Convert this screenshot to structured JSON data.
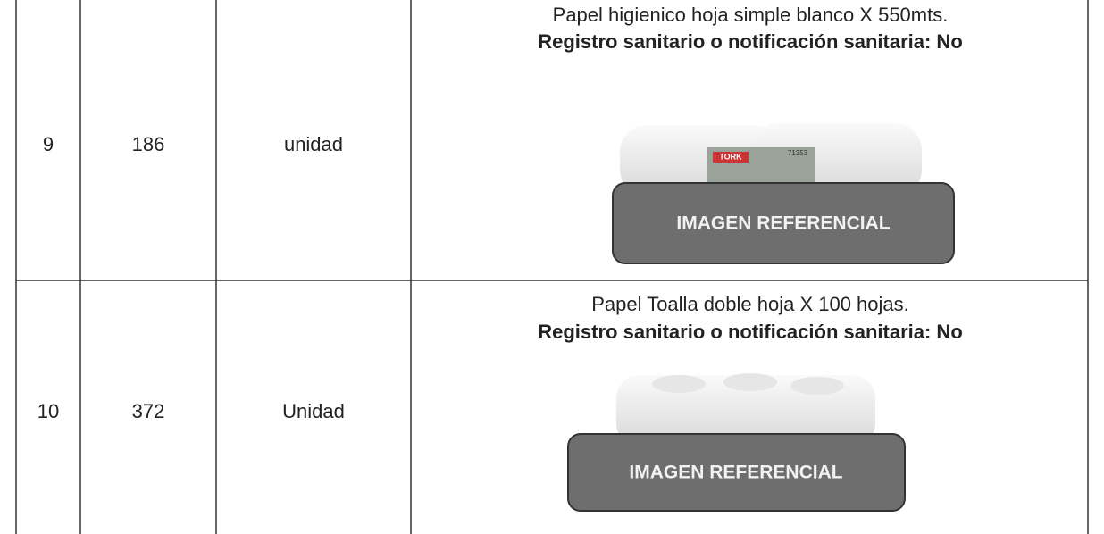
{
  "table": {
    "rows": [
      {
        "item": "9",
        "quantity": "186",
        "unit": "unidad",
        "description": "Papel higienico hoja simple blanco X 550mts.",
        "registry": "Registro sanitario o notificación sanitaria: No",
        "image_brand": "TORK",
        "image_code": "71353",
        "image_label": "IMAGEN REFERENCIAL"
      },
      {
        "item": "10",
        "quantity": "372",
        "unit": "Unidad",
        "description": "Papel Toalla doble hoja X 100 hojas.",
        "registry": "Registro sanitario o notificación sanitaria: No",
        "image_label": "IMAGEN REFERENCIAL"
      }
    ]
  }
}
